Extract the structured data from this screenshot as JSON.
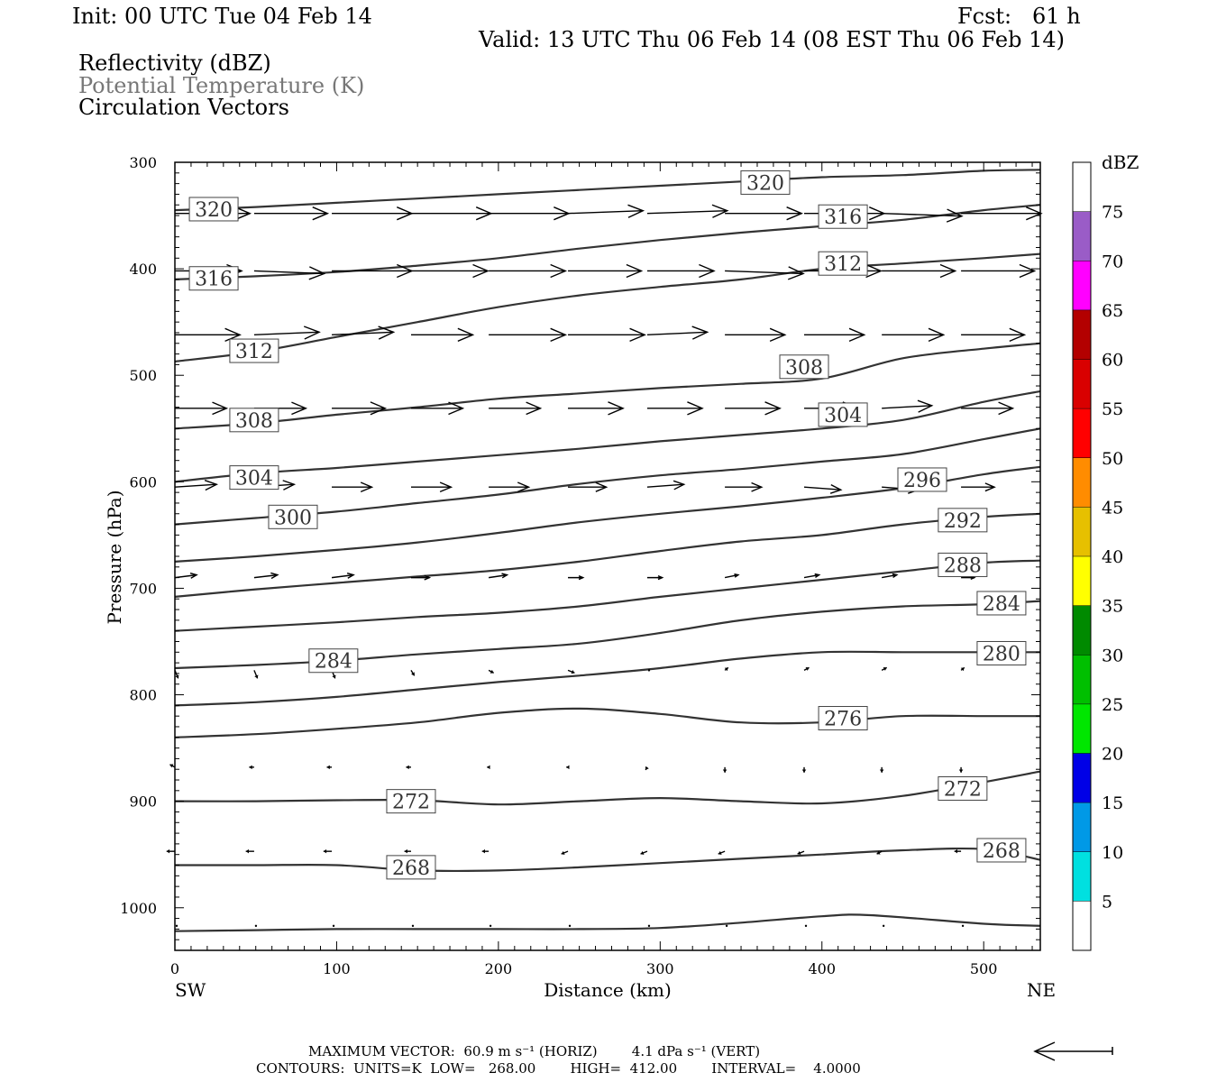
{
  "header": {
    "init": "Init: 00 UTC Tue 04 Feb 14",
    "fcst": "Fcst:   61 h",
    "valid": "Valid: 13 UTC Thu 06 Feb 14 (08 EST Thu 06 Feb 14)"
  },
  "legend_lines": {
    "reflectivity": "Reflectivity (dBZ)",
    "theta": "Potential Temperature (K)",
    "vectors": "Circulation Vectors"
  },
  "footer": {
    "max_vector_line": "MAXIMUM VECTOR:  60.9 m s⁻¹ (HORIZ)        4.1 dPa s⁻¹ (VERT)",
    "contours_line": "CONTOURS:  UNITS=K  LOW=   268.00        HIGH=  412.00        INTERVAL=    4.0000"
  },
  "chart_data": {
    "type": "line",
    "xlabel": "Distance (km)",
    "ylabel": "Pressure (hPa)",
    "xlim": [
      0,
      535
    ],
    "ylim": [
      1040,
      300
    ],
    "x_ticks": [
      0,
      100,
      200,
      300,
      400,
      500
    ],
    "y_ticks": [
      300,
      400,
      500,
      600,
      700,
      800,
      900,
      1000
    ],
    "x_end_labels": {
      "left": "SW",
      "right": "NE"
    },
    "colorbar": {
      "unit": "dBZ",
      "levels": [
        5,
        10,
        15,
        20,
        25,
        30,
        35,
        40,
        45,
        50,
        55,
        60,
        65,
        70,
        75
      ],
      "colors": [
        "#ffffff",
        "#00e0e0",
        "#0099e6",
        "#0000e6",
        "#00e600",
        "#00bf00",
        "#008a00",
        "#ffff00",
        "#e6c000",
        "#ff8c00",
        "#ff0000",
        "#d90000",
        "#b30000",
        "#ff00ff",
        "#9a5cc7",
        "#ffffff"
      ]
    },
    "contour_color": "#333333",
    "contours": [
      {
        "level": 320,
        "x": [
          0,
          50,
          100,
          150,
          200,
          250,
          300,
          350,
          400,
          450,
          500,
          535
        ],
        "y": [
          345,
          342,
          338,
          334,
          330,
          326,
          322,
          318,
          314,
          312,
          308,
          307
        ]
      },
      {
        "level": 316,
        "x": [
          0,
          50,
          100,
          150,
          200,
          250,
          300,
          350,
          400,
          450,
          500,
          535
        ],
        "y": [
          410,
          407,
          403,
          397,
          390,
          381,
          373,
          366,
          360,
          354,
          345,
          340
        ]
      },
      {
        "level": 312,
        "x": [
          0,
          50,
          100,
          150,
          200,
          250,
          300,
          350,
          400,
          450,
          500,
          535
        ],
        "y": [
          487,
          478,
          464,
          450,
          436,
          425,
          417,
          410,
          400,
          395,
          390,
          386
        ]
      },
      {
        "level": 308,
        "x": [
          0,
          50,
          100,
          150,
          200,
          250,
          300,
          350,
          400,
          450,
          500,
          535
        ],
        "y": [
          550,
          545,
          537,
          530,
          522,
          517,
          512,
          508,
          503,
          484,
          475,
          470
        ]
      },
      {
        "level": 304,
        "x": [
          0,
          50,
          100,
          150,
          200,
          250,
          300,
          350,
          400,
          450,
          500,
          535
        ],
        "y": [
          600,
          592,
          587,
          581,
          575,
          569,
          562,
          556,
          550,
          542,
          525,
          515
        ]
      },
      {
        "level": 300,
        "x": [
          0,
          50,
          100,
          150,
          200,
          250,
          300,
          350,
          400,
          450,
          500,
          535
        ],
        "y": [
          640,
          634,
          628,
          620,
          612,
          602,
          594,
          588,
          581,
          574,
          560,
          550
        ]
      },
      {
        "level": 296,
        "x": [
          0,
          50,
          100,
          150,
          200,
          250,
          300,
          350,
          400,
          450,
          500,
          535
        ],
        "y": [
          675,
          670,
          664,
          657,
          648,
          638,
          630,
          623,
          615,
          606,
          593,
          586
        ]
      },
      {
        "level": 292,
        "x": [
          0,
          50,
          100,
          150,
          200,
          250,
          300,
          350,
          400,
          450,
          500,
          535
        ],
        "y": [
          708,
          701,
          695,
          689,
          683,
          675,
          665,
          656,
          650,
          640,
          633,
          630
        ]
      },
      {
        "level": 288,
        "x": [
          0,
          50,
          100,
          150,
          200,
          250,
          300,
          350,
          400,
          450,
          500,
          535
        ],
        "y": [
          740,
          736,
          732,
          727,
          723,
          717,
          708,
          700,
          692,
          684,
          676,
          674
        ]
      },
      {
        "level": 284,
        "x": [
          0,
          50,
          100,
          150,
          200,
          250,
          300,
          350,
          400,
          450,
          500,
          535
        ],
        "y": [
          775,
          772,
          768,
          762,
          757,
          752,
          742,
          730,
          722,
          717,
          715,
          712
        ]
      },
      {
        "level": 280,
        "x": [
          0,
          50,
          100,
          150,
          200,
          250,
          300,
          350,
          400,
          450,
          500,
          535
        ],
        "y": [
          810,
          807,
          802,
          795,
          788,
          782,
          775,
          766,
          760,
          760,
          760,
          760
        ]
      },
      {
        "level": 276,
        "x": [
          0,
          50,
          100,
          150,
          200,
          250,
          300,
          350,
          400,
          450,
          500,
          535
        ],
        "y": [
          840,
          837,
          832,
          826,
          817,
          813,
          818,
          826,
          826,
          820,
          820,
          820
        ]
      },
      {
        "level": 272,
        "x": [
          0,
          50,
          100,
          150,
          200,
          250,
          300,
          350,
          400,
          450,
          500,
          535
        ],
        "y": [
          900,
          900,
          899,
          899,
          903,
          900,
          897,
          900,
          902,
          895,
          882,
          872
        ]
      },
      {
        "level": 268,
        "x": [
          0,
          50,
          100,
          150,
          200,
          250,
          300,
          350,
          400,
          450,
          500,
          535
        ],
        "y": [
          960,
          960,
          960,
          965,
          965,
          962,
          958,
          954,
          950,
          946,
          945,
          955
        ]
      },
      {
        "level": "surface",
        "x": [
          0,
          50,
          100,
          150,
          200,
          250,
          300,
          350,
          400,
          430,
          500,
          535
        ],
        "y": [
          1022,
          1021,
          1020,
          1020,
          1020,
          1020,
          1019,
          1014,
          1008,
          1007,
          1015,
          1017
        ]
      }
    ],
    "contour_labels": [
      {
        "text": "320",
        "x": 365,
        "y": 319
      },
      {
        "text": "320",
        "x": 24,
        "y": 344
      },
      {
        "text": "316",
        "x": 413,
        "y": 351
      },
      {
        "text": "316",
        "x": 24,
        "y": 409
      },
      {
        "text": "312",
        "x": 413,
        "y": 395
      },
      {
        "text": "312",
        "x": 49,
        "y": 477
      },
      {
        "text": "308",
        "x": 389,
        "y": 492
      },
      {
        "text": "308",
        "x": 49,
        "y": 542
      },
      {
        "text": "304",
        "x": 413,
        "y": 537
      },
      {
        "text": "304",
        "x": 49,
        "y": 596
      },
      {
        "text": "300",
        "x": 73,
        "y": 633
      },
      {
        "text": "296",
        "x": 462,
        "y": 598
      },
      {
        "text": "292",
        "x": 487,
        "y": 636
      },
      {
        "text": "288",
        "x": 487,
        "y": 678
      },
      {
        "text": "284",
        "x": 511,
        "y": 714
      },
      {
        "text": "284",
        "x": 98,
        "y": 768
      },
      {
        "text": "280",
        "x": 511,
        "y": 761
      },
      {
        "text": "276",
        "x": 413,
        "y": 822
      },
      {
        "text": "272",
        "x": 146,
        "y": 900
      },
      {
        "text": "272",
        "x": 487,
        "y": 888
      },
      {
        "text": "268",
        "x": 146,
        "y": 962
      },
      {
        "text": "268",
        "x": 511,
        "y": 946
      }
    ],
    "vectors": {
      "x": [
        0,
        49,
        97,
        146,
        194,
        243,
        292,
        340,
        389,
        437,
        486
      ],
      "rows": [
        {
          "p": 348,
          "u": [
            45,
            44,
            48,
            48,
            48,
            45,
            48,
            46,
            48,
            48,
            48
          ],
          "w": [
            0,
            0,
            0,
            0,
            0,
            -1,
            -1,
            0,
            0,
            1,
            0
          ]
        },
        {
          "p": 402,
          "u": [
            40,
            42,
            48,
            46,
            46,
            44,
            40,
            47,
            46,
            44,
            44
          ],
          "w": [
            0,
            1,
            0,
            0,
            0,
            0,
            0,
            1,
            0,
            0,
            0
          ]
        },
        {
          "p": 462,
          "u": [
            39,
            39,
            37,
            37,
            46,
            46,
            36,
            36,
            36,
            37,
            38
          ],
          "w": [
            0,
            -1,
            -1,
            0,
            0,
            0,
            -1,
            0,
            0,
            0,
            0
          ]
        },
        {
          "p": 531,
          "u": [
            31,
            31,
            32,
            31,
            31,
            33,
            33,
            33,
            32,
            30,
            31
          ],
          "w": [
            0,
            0,
            0,
            0,
            0,
            0,
            0,
            0,
            0,
            -1,
            0
          ]
        },
        {
          "p": 605,
          "u": [
            25,
            24,
            24,
            24,
            24,
            23,
            22,
            22,
            22,
            22,
            20
          ],
          "w": [
            -1,
            -1,
            0,
            0,
            0,
            0,
            -1,
            0,
            1,
            1,
            0
          ]
        },
        {
          "p": 690,
          "u": [
            13,
            14,
            13,
            11,
            11,
            9,
            9,
            8,
            9,
            9,
            8
          ],
          "w": [
            -1,
            -1,
            -1,
            0,
            -1,
            0,
            0,
            -1,
            -1,
            -1,
            0
          ]
        },
        {
          "p": 777,
          "u": [
            2,
            2,
            2,
            2,
            3,
            4,
            0,
            2,
            3,
            3,
            2
          ],
          "w": [
            3,
            3,
            3,
            2,
            1,
            1,
            0,
            -1,
            -1,
            -1,
            -1
          ]
        },
        {
          "p": 868,
          "u": [
            -3,
            -3,
            -3,
            -3,
            -1,
            -1,
            -1,
            0,
            0,
            0,
            0
          ],
          "w": [
            -1,
            0,
            0,
            0,
            0,
            0,
            1,
            2,
            2,
            2,
            2
          ]
        },
        {
          "p": 947,
          "u": [
            -5,
            -5,
            -5,
            -4,
            -4,
            -4,
            -4,
            -4,
            -4,
            -3,
            -4
          ],
          "w": [
            0,
            0,
            0,
            0,
            0,
            1,
            1,
            1,
            1,
            1,
            0
          ]
        },
        {
          "p": 1017,
          "u": [
            0,
            0,
            0,
            0,
            0,
            0,
            0,
            0,
            0,
            0,
            0
          ],
          "w": [
            0,
            0,
            0,
            0,
            0,
            0,
            0,
            0,
            0,
            0,
            0
          ]
        }
      ]
    }
  }
}
